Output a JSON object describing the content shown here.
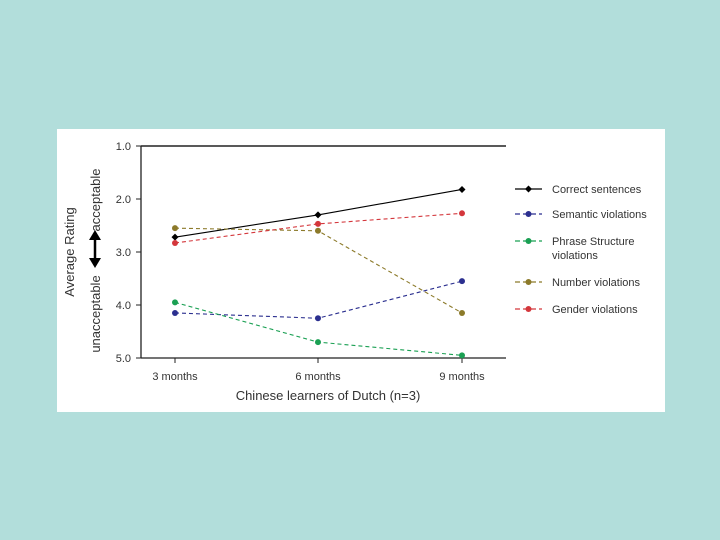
{
  "chart_data": {
    "type": "line",
    "categories": [
      "3 months",
      "6 months",
      "9 months"
    ],
    "xlabel": "Chinese learners of Dutch (n=3)",
    "ylabel": "Average Rating",
    "y_scale_labels": {
      "top": "acceptable",
      "bottom": "unacceptable"
    },
    "ylim": [
      5.0,
      1.0
    ],
    "y_inverted": true,
    "yticks": [
      "1.0",
      "2.0",
      "3.0",
      "4.0",
      "5.0"
    ],
    "legend_position": "right",
    "series": [
      {
        "name": "Correct sentences",
        "values": [
          2.72,
          2.3,
          1.82
        ],
        "color": "#000000",
        "marker": "diamond",
        "dashed": false
      },
      {
        "name": "Semantic violations",
        "values": [
          4.15,
          4.25,
          3.55
        ],
        "color": "#2b2f8f",
        "marker": "circle",
        "dashed": true
      },
      {
        "name": "Phrase Structure violations",
        "values": [
          3.95,
          4.7,
          4.95
        ],
        "color": "#1aa053",
        "marker": "circle",
        "dashed": true
      },
      {
        "name": "Number violations",
        "values": [
          2.55,
          2.6,
          4.15
        ],
        "color": "#8c7a2a",
        "marker": "circle",
        "dashed": true
      },
      {
        "name": "Gender violations",
        "values": [
          2.83,
          2.47,
          2.27
        ],
        "color": "#d4373c",
        "marker": "circle",
        "dashed": true
      }
    ]
  }
}
